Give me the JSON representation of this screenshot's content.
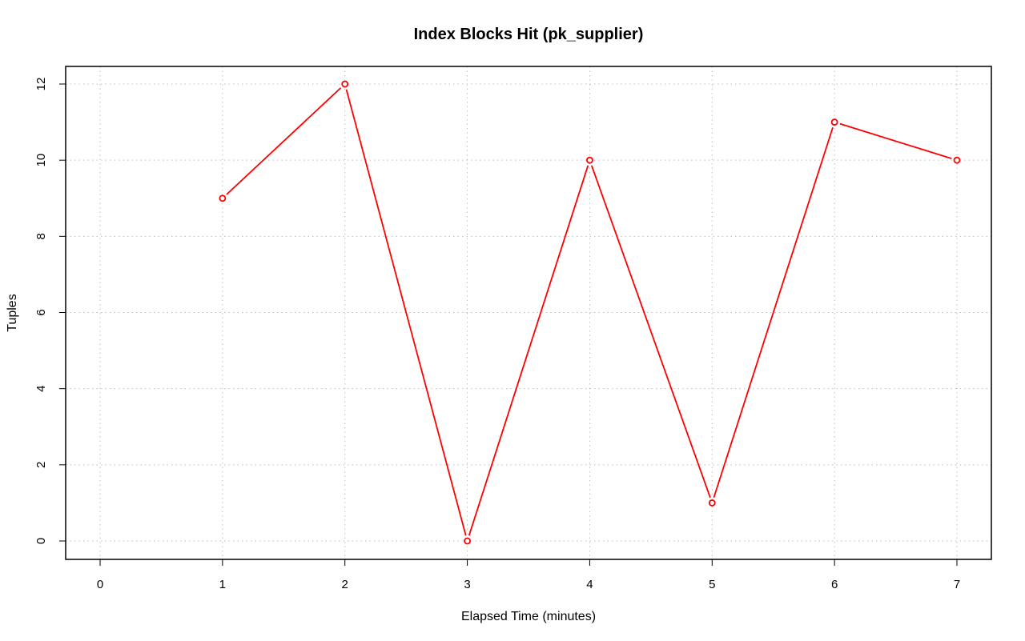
{
  "chart_data": {
    "type": "line",
    "title": "Index Blocks Hit (pk_supplier)",
    "xlabel": "Elapsed Time (minutes)",
    "ylabel": "Tuples",
    "xlim": [
      0,
      7
    ],
    "ylim": [
      0,
      12
    ],
    "x_ticks": [
      0,
      1,
      2,
      3,
      4,
      5,
      6,
      7
    ],
    "y_ticks": [
      0,
      2,
      4,
      6,
      8,
      10,
      12
    ],
    "grid": true,
    "series": [
      {
        "x": [
          1,
          2,
          3,
          4,
          5,
          6,
          7
        ],
        "values": [
          9,
          12,
          0,
          10,
          1,
          11,
          10
        ],
        "color": "#ff0000",
        "marker": "open-circle"
      }
    ],
    "colors": {
      "grid": "#bebebe",
      "axis": "#000000",
      "series": "#ff0000"
    }
  }
}
